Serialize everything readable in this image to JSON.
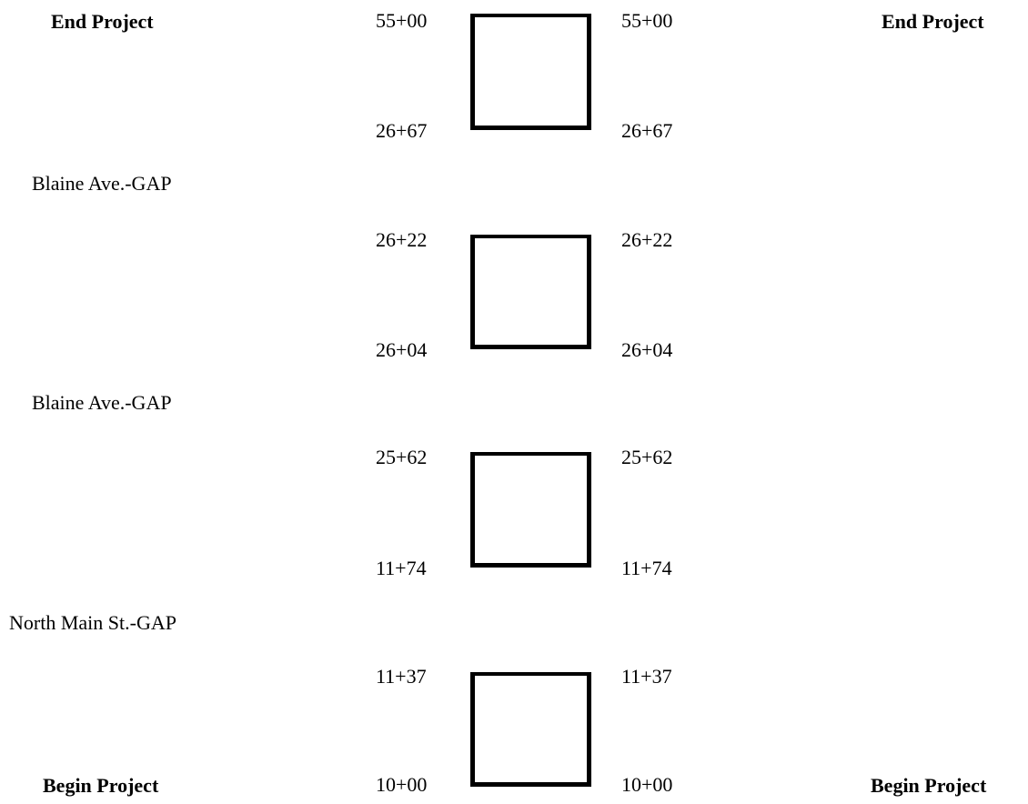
{
  "project": {
    "end_left": "End Project",
    "end_right": "End Project",
    "begin_left": "Begin Project",
    "begin_right": "Begin Project"
  },
  "segments": [
    {
      "top_left": "55+00",
      "top_right": "55+00",
      "bottom_left": "26+67",
      "bottom_right": "26+67"
    },
    {
      "top_left": "26+22",
      "top_right": "26+22",
      "bottom_left": "26+04",
      "bottom_right": "26+04"
    },
    {
      "top_left": "25+62",
      "top_right": "25+62",
      "bottom_left": "11+74",
      "bottom_right": "11+74"
    },
    {
      "top_left": "11+37",
      "top_right": "11+37",
      "bottom_left": "10+00",
      "bottom_right": "10+00"
    }
  ],
  "gaps": [
    "Blaine Ave.-GAP",
    "Blaine Ave.-GAP",
    "North Main St.-GAP"
  ]
}
